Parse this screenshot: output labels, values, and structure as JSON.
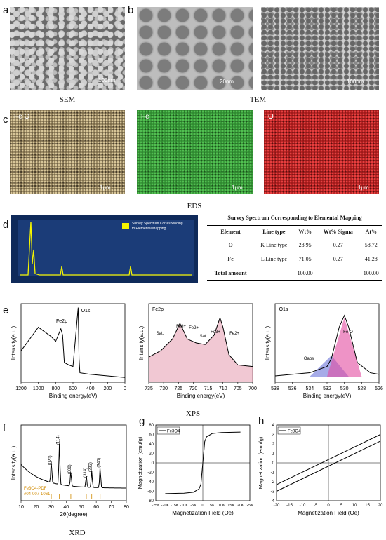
{
  "panel_labels": {
    "a": "a",
    "b": "b",
    "c": "c",
    "d": "d",
    "e": "e",
    "f": "f",
    "g": "g",
    "h": "h"
  },
  "captions": {
    "sem": "SEM",
    "tem": "TEM",
    "eds": "EDS",
    "xps": "XPS",
    "xrd": "XRD"
  },
  "scale_bars": {
    "sem": "100nm",
    "tem1": "20nm",
    "tem2": "100nm",
    "eds1": "1μm",
    "eds2": "1μm",
    "eds3": "1μm"
  },
  "eds_titles": {
    "map1": "Fe O",
    "map2": "Fe",
    "map3": "O"
  },
  "eds_colors": {
    "map1": "#7a6a48",
    "map2": "#2f8a30",
    "map3": "#a01818",
    "spectrum_bg": "#0f2a5a",
    "spectrum_line": "#f5f500"
  },
  "spectrum_legend": "Survey Spectrum Corresponding to Elemental Mapping",
  "table": {
    "title": "Survey Spectrum Corresponding to Elemental Mapping",
    "headers": [
      "Element",
      "Line type",
      "Wt%",
      "Wt% Sigma",
      "At%"
    ],
    "rows": [
      [
        "O",
        "K Line type",
        "28.95",
        "0.27",
        "58.72"
      ],
      [
        "Fe",
        "L Line type",
        "71.05",
        "0.27",
        "41.28"
      ],
      [
        "Total amount",
        "",
        "100.00",
        "",
        "100.00"
      ]
    ]
  },
  "chart_data": [
    {
      "id": "xps-survey",
      "type": "line",
      "xlabel": "Binding energy(eV)",
      "ylabel": "Intensity(a.u.)",
      "xlim": [
        1200,
        0
      ],
      "xticks": [
        1200,
        1000,
        800,
        600,
        400,
        200,
        0
      ],
      "annotations": [
        "Fe2p",
        "O1s"
      ],
      "x": [
        1200,
        1100,
        1000,
        950,
        900,
        850,
        800,
        740,
        720,
        700,
        650,
        600,
        540,
        530,
        520,
        400,
        300,
        200,
        100,
        0
      ],
      "y": [
        0.4,
        0.55,
        0.7,
        0.66,
        0.62,
        0.58,
        0.52,
        0.68,
        0.6,
        0.25,
        0.22,
        0.2,
        0.95,
        0.3,
        0.12,
        0.1,
        0.09,
        0.08,
        0.07,
        0.06
      ]
    },
    {
      "id": "xps-fe2p",
      "type": "line",
      "title": "Fe2p",
      "xlabel": "Binding energy(eV)",
      "ylabel": "Intensity(a.u.)",
      "xlim": [
        735,
        700
      ],
      "xticks": [
        735,
        730,
        725,
        720,
        715,
        710,
        705,
        700
      ],
      "annotations": [
        "Sat.",
        "Fe3+",
        "Fe2+",
        "Sat.",
        "Fe3+",
        "Fe2+"
      ],
      "x": [
        735,
        731,
        727,
        724.5,
        722,
        719,
        716,
        713,
        711,
        710,
        708,
        705,
        700
      ],
      "y": [
        0.32,
        0.4,
        0.55,
        0.75,
        0.55,
        0.5,
        0.48,
        0.6,
        0.82,
        0.7,
        0.35,
        0.22,
        0.2
      ]
    },
    {
      "id": "xps-o1s",
      "type": "line",
      "title": "O1s",
      "xlabel": "Binding energy(eV)",
      "ylabel": "Intensity(a.u.)",
      "xlim": [
        538,
        526
      ],
      "xticks": [
        538,
        536,
        534,
        532,
        530,
        528,
        526
      ],
      "annotations": [
        "Oabs",
        "Fe-O"
      ],
      "x": [
        538,
        534,
        532,
        531.5,
        530.6,
        530,
        529.5,
        528.5,
        527,
        526
      ],
      "y": [
        0.08,
        0.12,
        0.2,
        0.3,
        0.7,
        0.85,
        0.7,
        0.25,
        0.12,
        0.1
      ]
    },
    {
      "id": "xrd",
      "type": "line",
      "xlabel": "2θ(degree)",
      "ylabel": "Intensity(a.u.)",
      "xlim": [
        10,
        80
      ],
      "xticks": [
        10,
        20,
        30,
        40,
        50,
        60,
        70,
        80
      ],
      "peak_labels": [
        "(020)",
        "(114)",
        "(008)",
        "(314)",
        "(232)",
        "(340)"
      ],
      "reference_label": "Fe3O4-PDF #04-007-1061",
      "peaks_x": [
        30.1,
        35.5,
        43.1,
        53.4,
        57.0,
        62.6
      ],
      "peaks_y": [
        0.55,
        1.0,
        0.35,
        0.28,
        0.4,
        0.5
      ]
    },
    {
      "id": "vsm-full",
      "type": "line",
      "xlabel": "Magnetization Field (Oe)",
      "ylabel": "Magnetization (emu/g)",
      "legend": "Fe3O4",
      "ylim": [
        -80,
        80
      ],
      "yticks": [
        -80,
        -60,
        -40,
        -20,
        0,
        20,
        40,
        60,
        80
      ],
      "xlim": [
        -25000,
        25000
      ],
      "xtick_labels": [
        "-25K",
        "-20K",
        "-15K",
        "-10K",
        "-5K",
        "0",
        "5K",
        "10K",
        "15K",
        "20K",
        "25K"
      ],
      "x": [
        -20000,
        -10000,
        -5000,
        -2000,
        -1000,
        0,
        1000,
        2000,
        5000,
        10000,
        20000
      ],
      "y": [
        -65,
        -64,
        -62,
        -55,
        -45,
        0,
        45,
        55,
        62,
        64,
        65
      ]
    },
    {
      "id": "vsm-zoom",
      "type": "line",
      "xlabel": "Magnetization Field (Oe)",
      "ylabel": "Magnetization (emu/g)",
      "legend": "Fe3O4",
      "xlim": [
        -20,
        20
      ],
      "xticks": [
        -20,
        -15,
        -10,
        -5,
        0,
        5,
        10,
        15,
        20
      ],
      "ylim": [
        -4,
        4
      ],
      "yticks": [
        -4,
        -3,
        -2,
        -1,
        0,
        1,
        2,
        3,
        4
      ],
      "series": [
        {
          "x": [
            -20,
            20
          ],
          "y": [
            -2.3,
            3.0
          ]
        },
        {
          "x": [
            -20,
            20
          ],
          "y": [
            -3.0,
            2.3
          ]
        }
      ]
    }
  ]
}
